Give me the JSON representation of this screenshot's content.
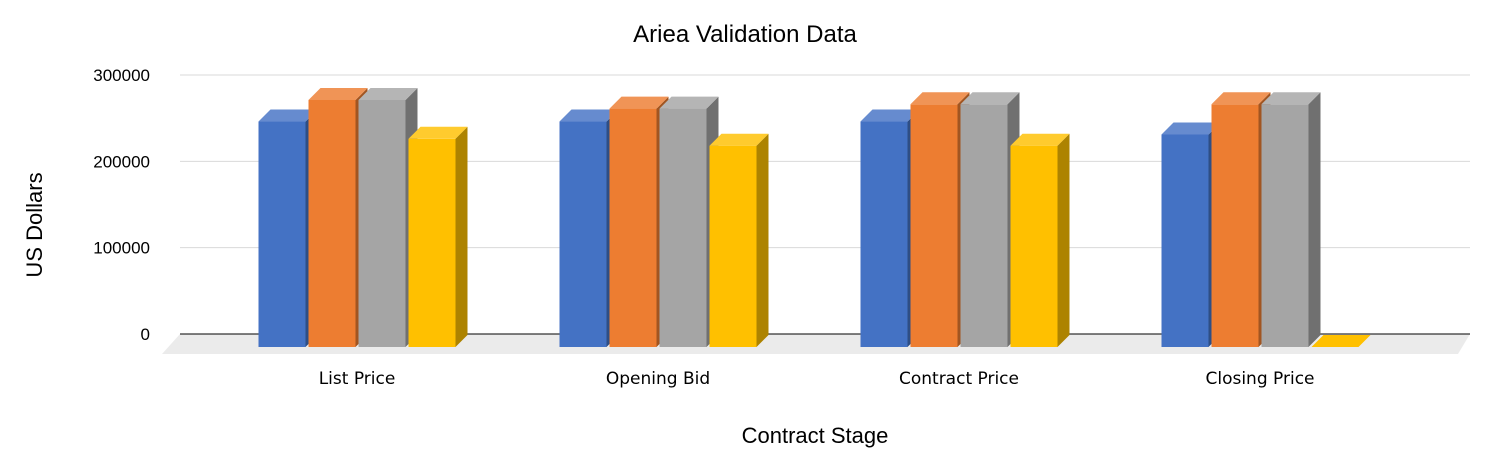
{
  "chart_data": {
    "type": "bar",
    "style": "3d-clustered-column",
    "title": "Ariea Validation Data",
    "xlabel": "Contract Stage",
    "ylabel": "US Dollars",
    "categories": [
      "List Price",
      "Opening Bid",
      "Contract Price",
      "Closing Price"
    ],
    "y_ticks": [
      "0",
      "100000",
      "200000",
      "300000"
    ],
    "ylim": [
      0,
      300000
    ],
    "grid": true,
    "legend": "none",
    "series": [
      {
        "color": "#4472c4",
        "values": [
          260000,
          260000,
          260000,
          245000
        ]
      },
      {
        "color": "#ed7d31",
        "values": [
          285000,
          275000,
          280000,
          280000
        ]
      },
      {
        "color": "#a5a5a5",
        "values": [
          285000,
          275000,
          280000,
          280000
        ]
      },
      {
        "color": "#ffc000",
        "values": [
          240000,
          232000,
          232000,
          0
        ]
      }
    ]
  }
}
